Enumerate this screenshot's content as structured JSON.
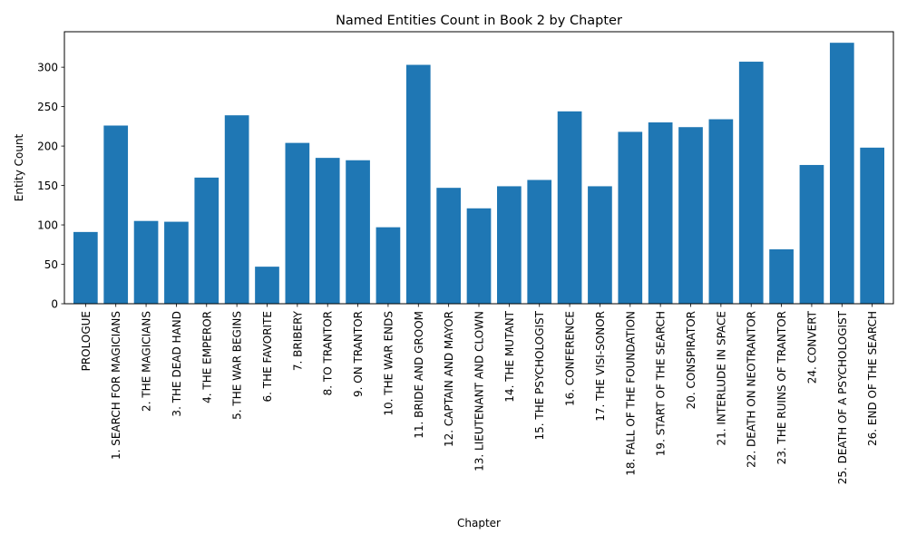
{
  "chart_data": {
    "type": "bar",
    "title": "Named Entities Count in Book 2 by Chapter",
    "xlabel": "Chapter",
    "ylabel": "Entity Count",
    "ylim": [
      0,
      345
    ],
    "yticks": [
      0,
      50,
      100,
      150,
      200,
      250,
      300
    ],
    "grid": false,
    "bar_color": "#1f77b4",
    "categories": [
      "PROLOGUE",
      "1. SEARCH FOR MAGICIANS",
      "2. THE MAGICIANS",
      "3. THE DEAD HAND",
      "4. THE EMPEROR",
      "5. THE WAR BEGINS",
      "6. THE FAVORITE",
      "7. BRIBERY",
      "8. TO TRANTOR",
      "9. ON TRANTOR",
      "10. THE WAR ENDS",
      "11. BRIDE AND GROOM",
      "12. CAPTAIN AND MAYOR",
      "13. LIEUTENANT AND CLOWN",
      "14. THE MUTANT",
      "15. THE PSYCHOLOGIST",
      "16. CONFERENCE",
      "17. THE VISI-SONOR",
      "18. FALL OF THE FOUNDATION",
      "19. START OF THE SEARCH",
      "20. CONSPIRATOR",
      "21. INTERLUDE IN SPACE",
      "22. DEATH ON NEOTRANTOR",
      "23. THE RUINS OF TRANTOR",
      "24. CONVERT",
      "25. DEATH OF A PSYCHOLOGIST",
      "26. END OF THE SEARCH"
    ],
    "values": [
      91,
      226,
      105,
      104,
      160,
      239,
      47,
      204,
      185,
      182,
      97,
      303,
      147,
      121,
      149,
      157,
      244,
      149,
      218,
      230,
      224,
      234,
      307,
      69,
      176,
      331,
      198
    ]
  }
}
